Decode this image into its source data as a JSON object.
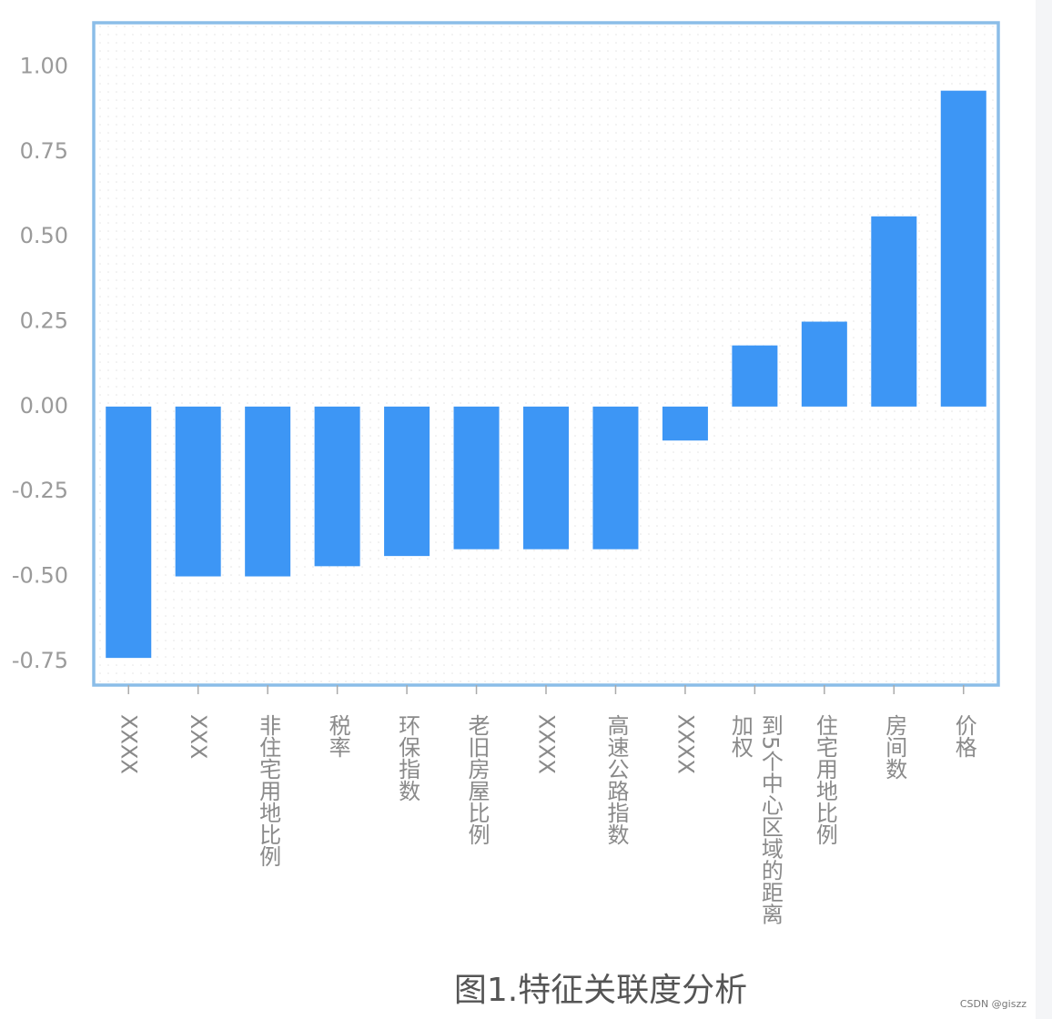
{
  "chart_data": {
    "type": "bar",
    "title": "图1.特征关联度分析",
    "categories": [
      "XXXX",
      "XXX",
      "非住宅用地比例",
      "税率",
      "环保指数",
      "老旧房屋比例",
      "XXXX",
      "高速公路指数",
      "XXXX",
      "到5个中心区域的距离加权",
      "住宅用地比例",
      "房间数",
      "价格"
    ],
    "values": [
      -0.74,
      -0.5,
      -0.5,
      -0.47,
      -0.44,
      -0.42,
      -0.42,
      -0.42,
      -0.1,
      0.18,
      0.25,
      0.56,
      0.93
    ],
    "color": "#3d96f5",
    "ylim": [
      -0.82,
      1.13
    ],
    "yticks": [
      {
        "value": -0.75,
        "label": "-0.75"
      },
      {
        "value": -0.5,
        "label": "-0.50"
      },
      {
        "value": -0.25,
        "label": "-0.25"
      },
      {
        "value": 0,
        "label": "0.00"
      },
      {
        "value": 0.25,
        "label": "0.25"
      },
      {
        "value": 0.5,
        "label": "0.50"
      },
      {
        "value": 0.75,
        "label": "0.75"
      },
      {
        "value": 1,
        "label": "1.00"
      }
    ],
    "grid": false,
    "watermark": "CSDN @giszz"
  }
}
